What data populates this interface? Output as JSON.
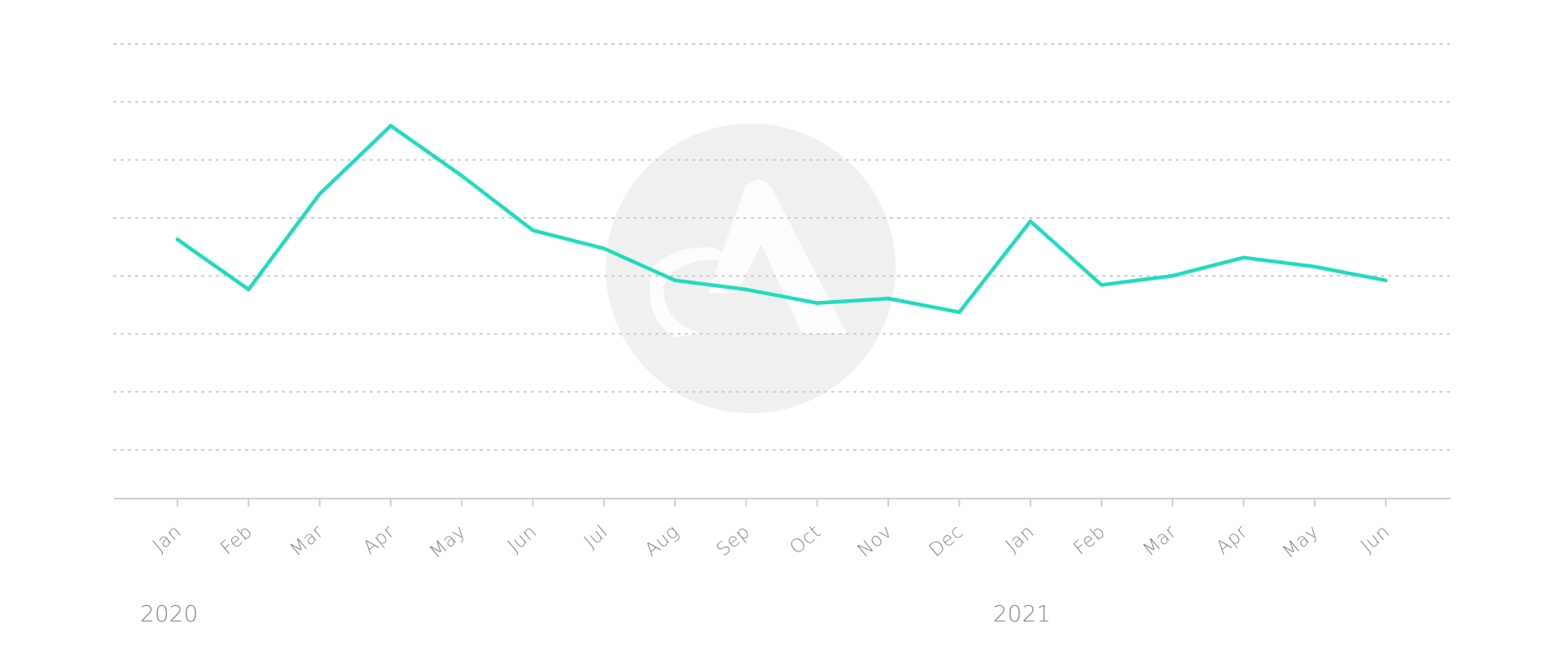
{
  "chart_data": {
    "type": "line",
    "title": "",
    "xlabel": "",
    "ylabel": "",
    "x": [
      "Jan",
      "Feb",
      "Mar",
      "Apr",
      "May",
      "Jun",
      "Jul",
      "Aug",
      "Sep",
      "Oct",
      "Nov",
      "Dec",
      "Jan",
      "Feb",
      "Mar",
      "Apr",
      "May",
      "Jun"
    ],
    "year_groups": [
      {
        "label": "2020",
        "start_index": 0
      },
      {
        "label": "2021",
        "start_index": 12
      }
    ],
    "series": [
      {
        "color": "#1fdcbd",
        "values": [
          57,
          46,
          67,
          82,
          71,
          59,
          55,
          48,
          46,
          43,
          44,
          41,
          61,
          47,
          49,
          53,
          51,
          48
        ]
      }
    ],
    "ylim": [
      0,
      100
    ],
    "grid": true,
    "grid_lines": 8,
    "legend": "none",
    "watermark": "logo-icon"
  },
  "colors": {
    "line": "#1fdcbd",
    "grid": "#c8c8c8",
    "axis": "#cfcfcf",
    "text": "#888888",
    "watermark": "#f0f0f0"
  }
}
